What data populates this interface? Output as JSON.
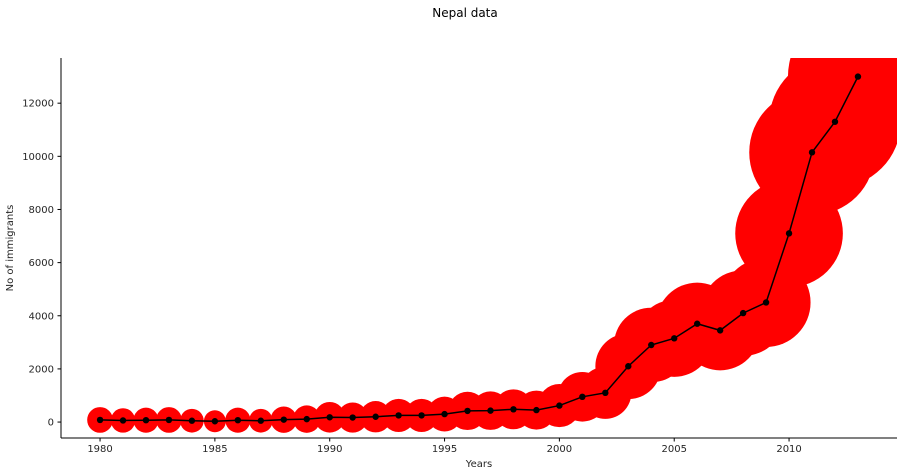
{
  "chart_data": {
    "type": "scatter",
    "title": "Nepal data",
    "xlabel": "Years",
    "ylabel": "No of immigrants",
    "xlim": [
      1978.3,
      2014.7
    ],
    "ylim": [
      -600,
      13700
    ],
    "xticks": [
      "1980",
      "1985",
      "1990",
      "1995",
      "2000",
      "2005",
      "2010"
    ],
    "yticks": [
      "0",
      "2000",
      "4000",
      "6000",
      "8000",
      "10000",
      "12000"
    ],
    "grid": false,
    "x": [
      1980,
      1981,
      1982,
      1983,
      1984,
      1985,
      1986,
      1987,
      1988,
      1989,
      1990,
      1991,
      1992,
      1993,
      1994,
      1995,
      1996,
      1997,
      1998,
      1999,
      2000,
      2001,
      2002,
      2003,
      2004,
      2005,
      2006,
      2007,
      2008,
      2009,
      2010,
      2011,
      2012,
      2013
    ],
    "y": [
      80,
      60,
      70,
      80,
      50,
      30,
      70,
      50,
      90,
      110,
      180,
      170,
      200,
      250,
      250,
      300,
      420,
      430,
      480,
      450,
      620,
      950,
      1100,
      2100,
      2900,
      3150,
      3700,
      3450,
      4100,
      4500,
      7100,
      10150,
      11300,
      13000
    ],
    "bubble_color": "#ff0000",
    "line_color": "#000000"
  }
}
